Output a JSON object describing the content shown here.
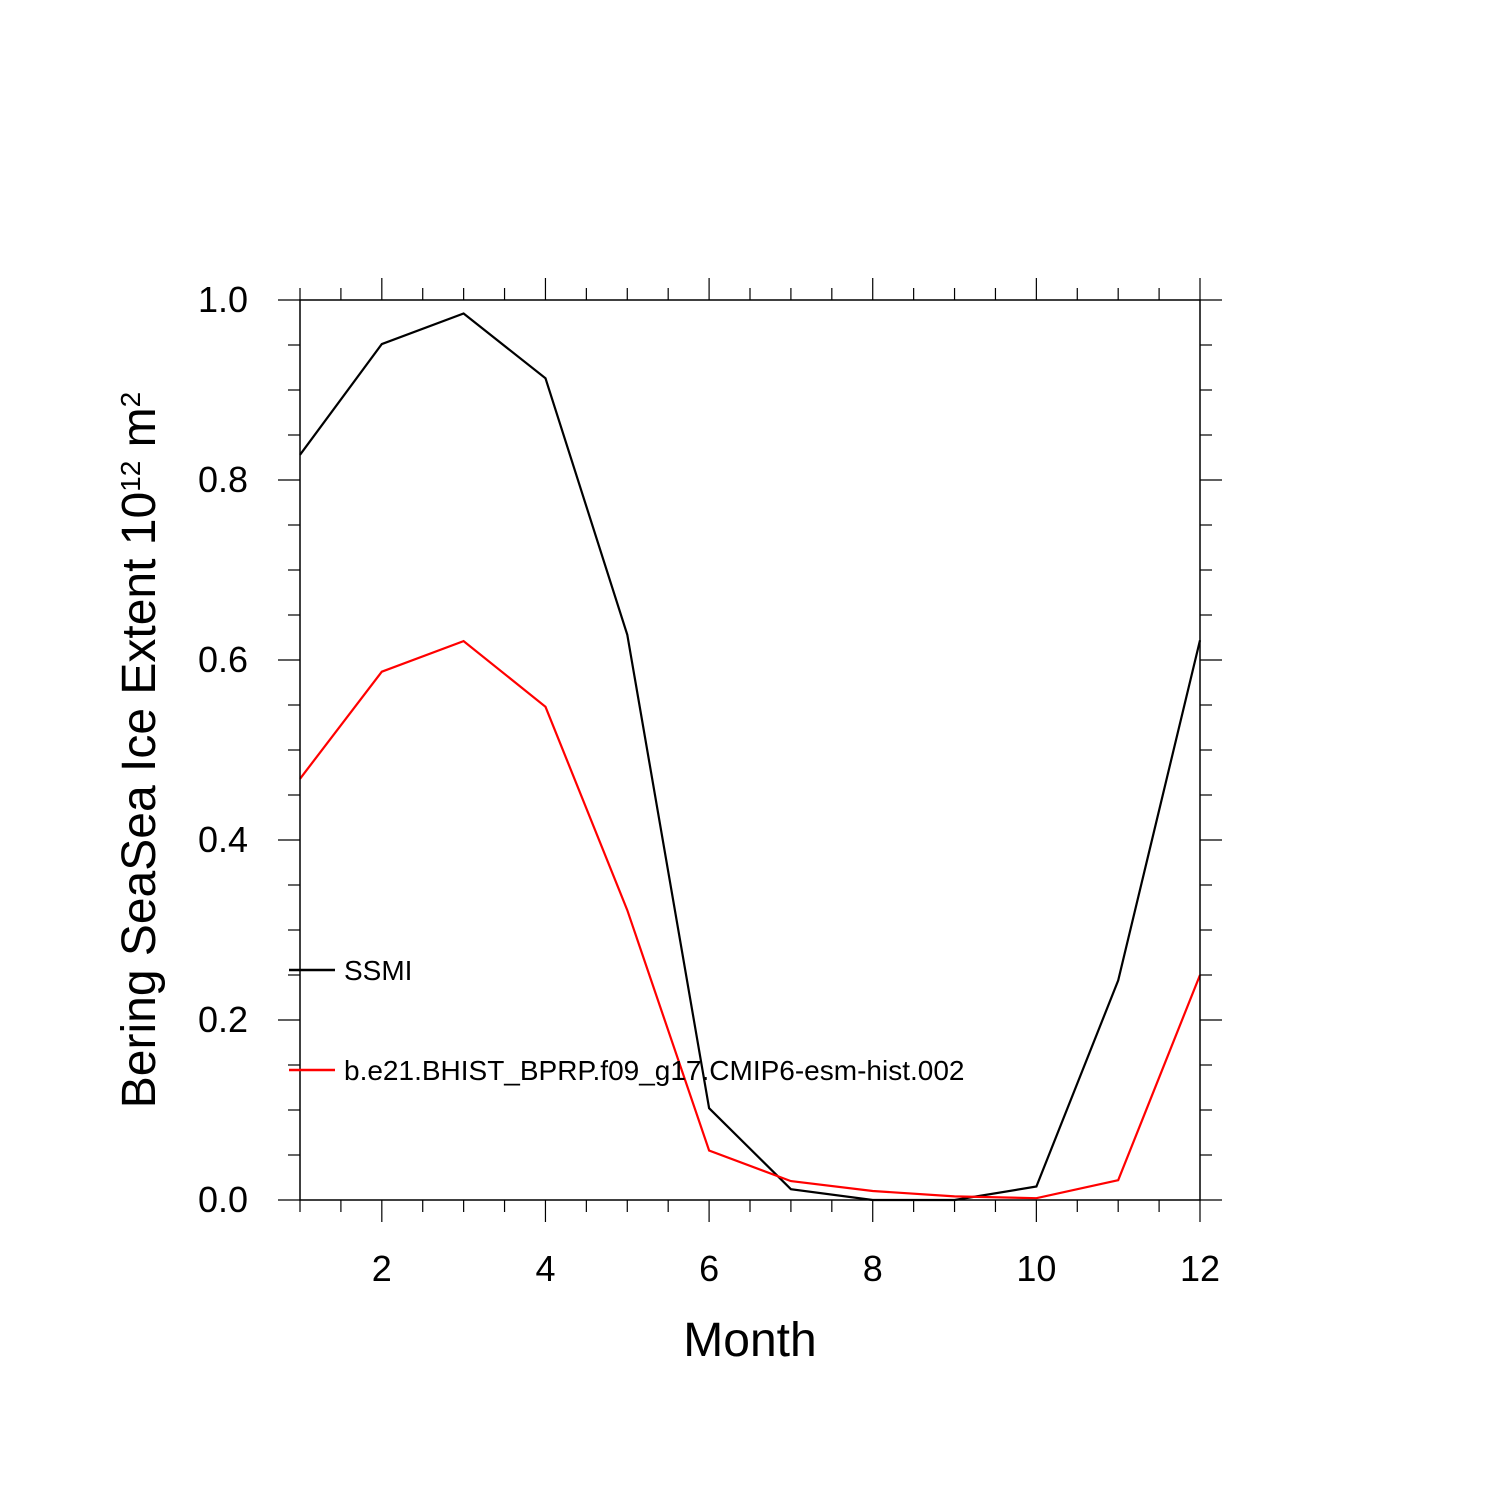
{
  "chart_data": {
    "type": "line",
    "title": "",
    "xlabel": "Month",
    "ylabel": "Bering SeaSea Ice Extent 10",
    "ylabel_exponent": "12",
    "ylabel_unit": "m",
    "ylabel_unit_exponent": "2",
    "xlim": [
      1,
      12
    ],
    "ylim": [
      0,
      1.0
    ],
    "x_ticks": [
      2,
      4,
      6,
      8,
      10,
      12
    ],
    "x_tick_labels": [
      "2",
      "4",
      "6",
      "8",
      "10",
      "12"
    ],
    "y_ticks": [
      0,
      0.2,
      0.4,
      0.6,
      0.8,
      1.0
    ],
    "y_tick_labels": [
      "0.0",
      "0.2",
      "0.4",
      "0.6",
      "0.8",
      "1.0"
    ],
    "grid": false,
    "legend_placement": "left-lower",
    "x": [
      1,
      2,
      3,
      4,
      5,
      6,
      7,
      8,
      9,
      10,
      11,
      12
    ],
    "series": [
      {
        "name": "SSMI",
        "color": "#000000",
        "values": [
          0.828,
          0.951,
          0.985,
          0.913,
          0.628,
          0.102,
          0.012,
          0.0,
          0.0,
          0.015,
          0.244,
          0.622
        ]
      },
      {
        "name": "b.e21.BHIST_BPRP.f09_g17.CMIP6-esm-hist.002",
        "color": "#ff0000",
        "values": [
          0.468,
          0.587,
          0.621,
          0.548,
          0.322,
          0.055,
          0.021,
          0.01,
          0.004,
          0.002,
          0.022,
          0.25
        ]
      }
    ]
  }
}
